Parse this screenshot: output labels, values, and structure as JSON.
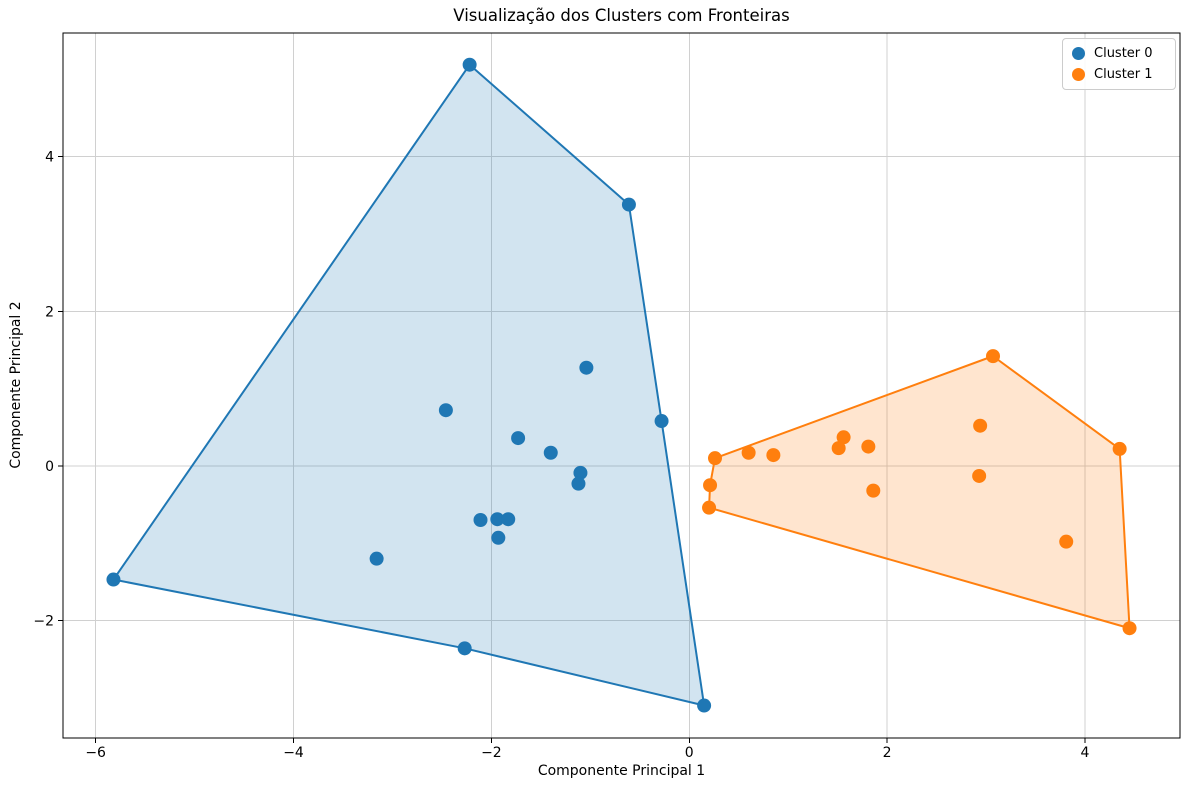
{
  "figure": {
    "title": "Visualização dos Clusters com Fronteiras",
    "xlabel": "Componente Principal 1",
    "ylabel": "Componente Principal 2"
  },
  "legend": {
    "position": "upper-right",
    "items": [
      {
        "label": "Cluster 0",
        "color": "#1f77b4"
      },
      {
        "label": "Cluster 1",
        "color": "#ff7f0e"
      }
    ]
  },
  "colors": {
    "cluster0": "#1f77b4",
    "cluster1": "#ff7f0e",
    "grid": "#d0d0d0",
    "spine": "#000000",
    "text": "#000000",
    "legend_border": "#cccccc"
  },
  "chart_data": {
    "type": "scatter",
    "title": "Visualização dos Clusters com Fronteiras",
    "xlabel": "Componente Principal 1",
    "ylabel": "Componente Principal 2",
    "xlim": [
      -6.33,
      4.96
    ],
    "ylim": [
      -3.52,
      5.6
    ],
    "xticks": [
      -6,
      -4,
      -2,
      0,
      2,
      4
    ],
    "yticks": [
      -2,
      0,
      2,
      4
    ],
    "grid": true,
    "legend_position": "upper right",
    "marker_radius_px": 7,
    "hull_line_width": 2,
    "hull_fill_alpha": 0.2,
    "series": [
      {
        "name": "Cluster 0",
        "color": "#1f77b4",
        "points": [
          [
            -2.22,
            5.19
          ],
          [
            -0.61,
            3.38
          ],
          [
            -1.04,
            1.27
          ],
          [
            -2.46,
            0.72
          ],
          [
            -0.28,
            0.58
          ],
          [
            -1.73,
            0.36
          ],
          [
            -1.4,
            0.17
          ],
          [
            -1.1,
            -0.09
          ],
          [
            -1.12,
            -0.23
          ],
          [
            -2.11,
            -0.7
          ],
          [
            -1.94,
            -0.69
          ],
          [
            -1.83,
            -0.69
          ],
          [
            -1.93,
            -0.93
          ],
          [
            -3.16,
            -1.2
          ],
          [
            -5.82,
            -1.47
          ],
          [
            -2.27,
            -2.36
          ],
          [
            0.15,
            -3.1
          ]
        ],
        "hull": [
          [
            -2.22,
            5.19
          ],
          [
            -0.61,
            3.38
          ],
          [
            -0.28,
            0.58
          ],
          [
            0.15,
            -3.1
          ],
          [
            -2.27,
            -2.36
          ],
          [
            -5.82,
            -1.47
          ]
        ]
      },
      {
        "name": "Cluster 1",
        "color": "#ff7f0e",
        "points": [
          [
            0.26,
            0.1
          ],
          [
            0.21,
            -0.25
          ],
          [
            0.2,
            -0.54
          ],
          [
            0.6,
            0.17
          ],
          [
            0.85,
            0.14
          ],
          [
            1.51,
            0.23
          ],
          [
            1.56,
            0.37
          ],
          [
            1.81,
            0.25
          ],
          [
            1.86,
            -0.32
          ],
          [
            2.93,
            -0.13
          ],
          [
            2.94,
            0.52
          ],
          [
            3.07,
            1.42
          ],
          [
            3.81,
            -0.98
          ],
          [
            4.35,
            0.22
          ],
          [
            4.45,
            -2.1
          ]
        ],
        "hull": [
          [
            0.26,
            0.1
          ],
          [
            3.07,
            1.42
          ],
          [
            4.35,
            0.22
          ],
          [
            4.45,
            -2.1
          ],
          [
            0.2,
            -0.54
          ],
          [
            0.21,
            -0.25
          ]
        ]
      }
    ]
  }
}
